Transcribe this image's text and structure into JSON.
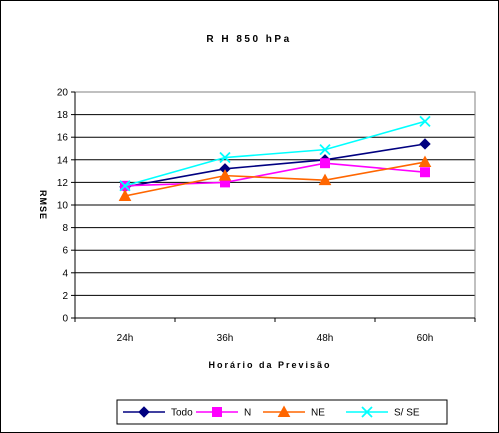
{
  "chart_data": {
    "type": "line",
    "title": "R H 850 hPa",
    "xlabel": "Horário da Previsão",
    "ylabel": "RMSE",
    "categories": [
      "24h",
      "36h",
      "48h",
      "60h"
    ],
    "ylim": [
      0,
      20
    ],
    "yticks": [
      0,
      2,
      4,
      6,
      8,
      10,
      12,
      14,
      16,
      18,
      20
    ],
    "grid": true,
    "legend_placement": "bottom",
    "series": [
      {
        "name": "Todo",
        "values": [
          11.6,
          13.2,
          14.0,
          15.4
        ],
        "color": "#000080",
        "marker": "diamond"
      },
      {
        "name": "N",
        "values": [
          11.7,
          12.0,
          13.7,
          12.9
        ],
        "color": "#FF00FF",
        "marker": "square"
      },
      {
        "name": "NE",
        "values": [
          10.8,
          12.6,
          12.2,
          13.8
        ],
        "color": "#FF6600",
        "marker": "triangle"
      },
      {
        "name": "S/ SE",
        "values": [
          11.7,
          14.2,
          14.9,
          17.4
        ],
        "color": "#00FFFF",
        "marker": "x"
      }
    ]
  }
}
